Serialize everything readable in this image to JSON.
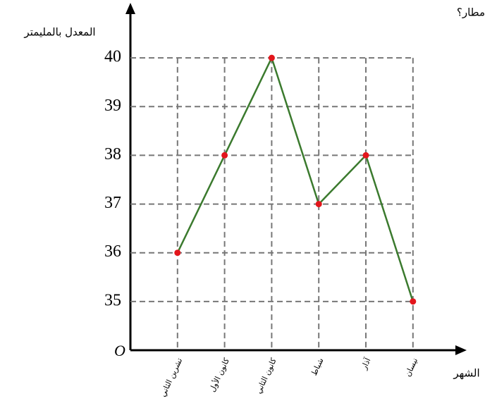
{
  "chart_data": {
    "type": "line",
    "question": "مطار؟",
    "y_label": "المعدل بالمليمتر",
    "x_label": "الشهر",
    "origin_label": "O",
    "categories": [
      "تشرين الثاني",
      "كانون الأول",
      "كانون الثاني",
      "شباط",
      "آذار",
      "نيسان"
    ],
    "values": [
      36,
      38,
      40,
      37,
      38,
      35
    ],
    "color": "#3b7a2e",
    "marker_color": "#e3161c",
    "ylim": [
      34,
      41
    ],
    "yticks": [
      35,
      36,
      37,
      38,
      39,
      40
    ],
    "grid": true
  }
}
